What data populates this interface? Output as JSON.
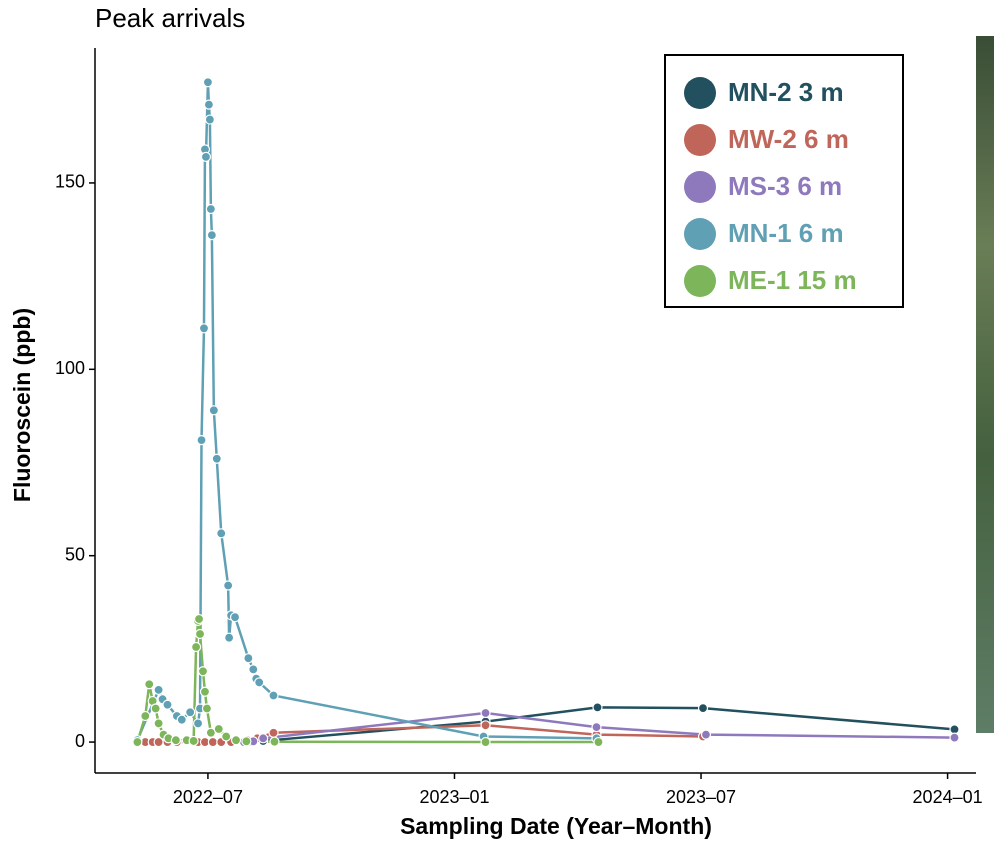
{
  "chart_data": {
    "type": "line",
    "title": "Peak arrivals",
    "x_label": "Sampling Date (Year–Month)",
    "y_label": "Fluoroscein (ppb)",
    "xlim": [
      2022.271,
      2024.086
    ],
    "xticks": [
      {
        "value": 2022.5,
        "label": "2022–07"
      },
      {
        "value": 2023.0,
        "label": "2023–01"
      },
      {
        "value": 2023.5,
        "label": "2023–07"
      },
      {
        "value": 2024.0,
        "label": "2024–01"
      }
    ],
    "ylim": [
      -8.3,
      186.2
    ],
    "yticks": [
      0,
      50,
      100,
      150
    ],
    "grid": false,
    "legend": "top-right",
    "series": [
      {
        "name": "MN-2 3 m",
        "color": "#22505e",
        "x": [
          2022.578,
          2022.59,
          2022.612,
          2023.063,
          2023.29,
          2023.504,
          2024.014
        ],
        "values": [
          0.5,
          0,
          0.3,
          5.5,
          9.3,
          9.1,
          3.4
        ]
      },
      {
        "name": "MW-2 6 m",
        "color": "#c0655a",
        "x": [
          2022.357,
          2022.373,
          2022.388,
          2022.4,
          2022.418,
          2022.437,
          2022.48,
          2022.494,
          2022.51,
          2022.527,
          2022.547,
          2022.58,
          2022.6,
          2022.633,
          2023.063,
          2023.288,
          2023.504
        ],
        "values": [
          0,
          0,
          0,
          0,
          0,
          0,
          0,
          0,
          0,
          0,
          0,
          0.5,
          1.0,
          2.5,
          4.5,
          2.0,
          1.5
        ]
      },
      {
        "name": "MS-3 6 m",
        "color": "#8e79bd",
        "x": [
          2022.573,
          2022.592,
          2022.612,
          2023.063,
          2023.288,
          2023.51,
          2024.014
        ],
        "values": [
          0,
          0.2,
          1,
          7.8,
          4,
          2,
          1.2
        ]
      },
      {
        "name": "MN-1 6 m",
        "color": "#5fa0b5",
        "x": [
          2022.357,
          2022.4,
          2022.408,
          2022.418,
          2022.437,
          2022.447,
          2022.464,
          2022.48,
          2022.484,
          2022.487,
          2022.492,
          2022.494,
          2022.496,
          2022.5,
          2022.502,
          2022.504,
          2022.506,
          2022.508,
          2022.512,
          2022.518,
          2022.527,
          2022.541,
          2022.543,
          2022.547,
          2022.555,
          2022.582,
          2022.592,
          2022.598,
          2022.604,
          2022.633,
          2023.059,
          2023.288
        ],
        "values": [
          0.5,
          14.0,
          11.5,
          10.0,
          7.0,
          6.0,
          8.0,
          5.0,
          9.0,
          81,
          111,
          159,
          157,
          177,
          171,
          167,
          143,
          136,
          89,
          76,
          56,
          42,
          28,
          34,
          33.5,
          22.5,
          19.5,
          17,
          16,
          12.5,
          1.5,
          1.0
        ]
      },
      {
        "name": "ME-1 15 m",
        "color": "#7db55a",
        "x": [
          2022.357,
          2022.373,
          2022.381,
          2022.388,
          2022.394,
          2022.4,
          2022.41,
          2022.42,
          2022.435,
          2022.457,
          2022.471,
          2022.476,
          2022.48,
          2022.482,
          2022.484,
          2022.49,
          2022.494,
          2022.498,
          2022.506,
          2022.522,
          2022.537,
          2022.557,
          2022.578,
          2022.635,
          2023.063,
          2023.292
        ],
        "values": [
          0,
          7,
          15.5,
          11,
          9,
          5,
          2,
          1,
          0.5,
          0.5,
          0.3,
          25.5,
          32.5,
          33,
          29,
          19,
          13.5,
          9,
          2.5,
          3.5,
          1.5,
          0.5,
          0.2,
          0.1,
          0,
          0
        ]
      }
    ]
  }
}
